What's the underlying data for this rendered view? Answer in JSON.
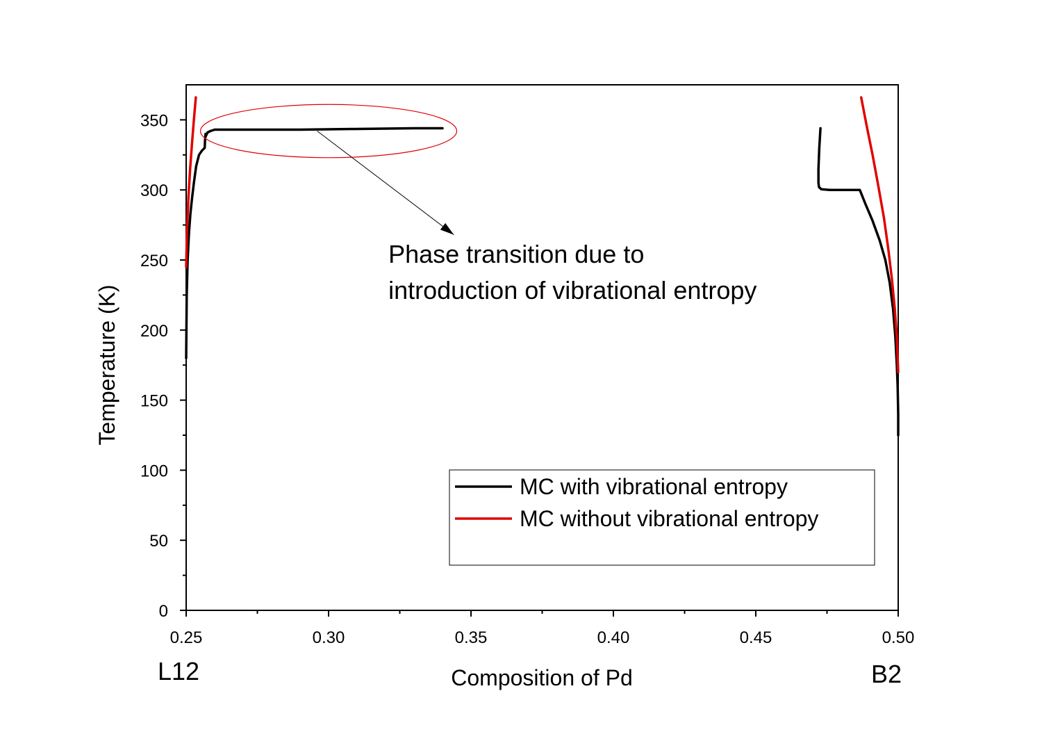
{
  "chart_data": {
    "type": "line",
    "xlabel": "Composition of Pd",
    "ylabel": "Temperature (K)",
    "xlim": [
      0.25,
      0.5
    ],
    "ylim": [
      0,
      375
    ],
    "xticks": [
      0.25,
      0.3,
      0.35,
      0.4,
      0.45,
      0.5
    ],
    "xtick_labels": [
      "0.25",
      "0.30",
      "0.35",
      "0.40",
      "0.45",
      "0.50"
    ],
    "yticks": [
      0,
      50,
      100,
      150,
      200,
      250,
      300,
      350
    ],
    "ytick_labels": [
      "0",
      "50",
      "100",
      "150",
      "200",
      "250",
      "300",
      "350"
    ],
    "x_minor_step": 0.025,
    "y_minor_step": 25,
    "grid": false,
    "legend_position": "bottom-right",
    "phase_labels": {
      "left": "L12",
      "right": "B2"
    },
    "annotation": {
      "lines": [
        "Phase transition due to",
        "introduction of vibrational entropy"
      ],
      "ellipse_center": [
        0.3,
        342
      ],
      "ellipse_radius_x": 0.045,
      "ellipse_radius_y": 19,
      "arrow_from": [
        0.296,
        342
      ],
      "arrow_to": [
        0.344,
        268
      ],
      "text_anchor": [
        0.321,
        248
      ]
    },
    "series": [
      {
        "name": "MC with vibrational entropy",
        "color": "#000000",
        "segments": [
          {
            "x": [
              0.25,
              0.2502,
              0.2505,
              0.251,
              0.2515,
              0.252,
              0.2527,
              0.2535,
              0.2545,
              0.2555,
              0.2565,
              0.2566,
              0.2568,
              0.2568,
              0.2575,
              0.2585,
              0.26,
              0.27,
              0.29,
              0.31,
              0.33,
              0.34
            ],
            "y": [
              180,
              225,
              250,
              270,
              283,
              293,
              305,
              317,
              325,
              328,
              330,
              335,
              340,
              338,
              341,
              342,
              343,
              343,
              343,
              343.5,
              344,
              344
            ]
          },
          {
            "x": [
              0.4727,
              0.4723,
              0.472,
              0.472,
              0.4722,
              0.473,
              0.476,
              0.482,
              0.4865,
              0.4885,
              0.491,
              0.4935,
              0.4955,
              0.497,
              0.4982,
              0.499,
              0.4995,
              0.4998,
              0.5,
              0.5
            ],
            "y": [
              344,
              330,
              315,
              305,
              302,
              300.5,
              300,
              300,
              300,
              290,
              278,
              264,
              250,
              234,
              215,
              195,
              175,
              160,
              140,
              125
            ]
          }
        ]
      },
      {
        "name": "MC without vibrational entropy",
        "color": "#e00000",
        "segments": [
          {
            "x": [
              0.25,
              0.2503,
              0.2508,
              0.2514,
              0.252,
              0.2527,
              0.2534
            ],
            "y": [
              245,
              272,
              295,
              315,
              332,
              350,
              366
            ]
          },
          {
            "x": [
              0.487,
              0.489,
              0.491,
              0.493,
              0.495,
              0.4965,
              0.4978,
              0.4988,
              0.4995,
              0.5
            ],
            "y": [
              366,
              345,
              325,
              303,
              280,
              258,
              236,
              215,
              195,
              170
            ]
          }
        ]
      }
    ]
  }
}
